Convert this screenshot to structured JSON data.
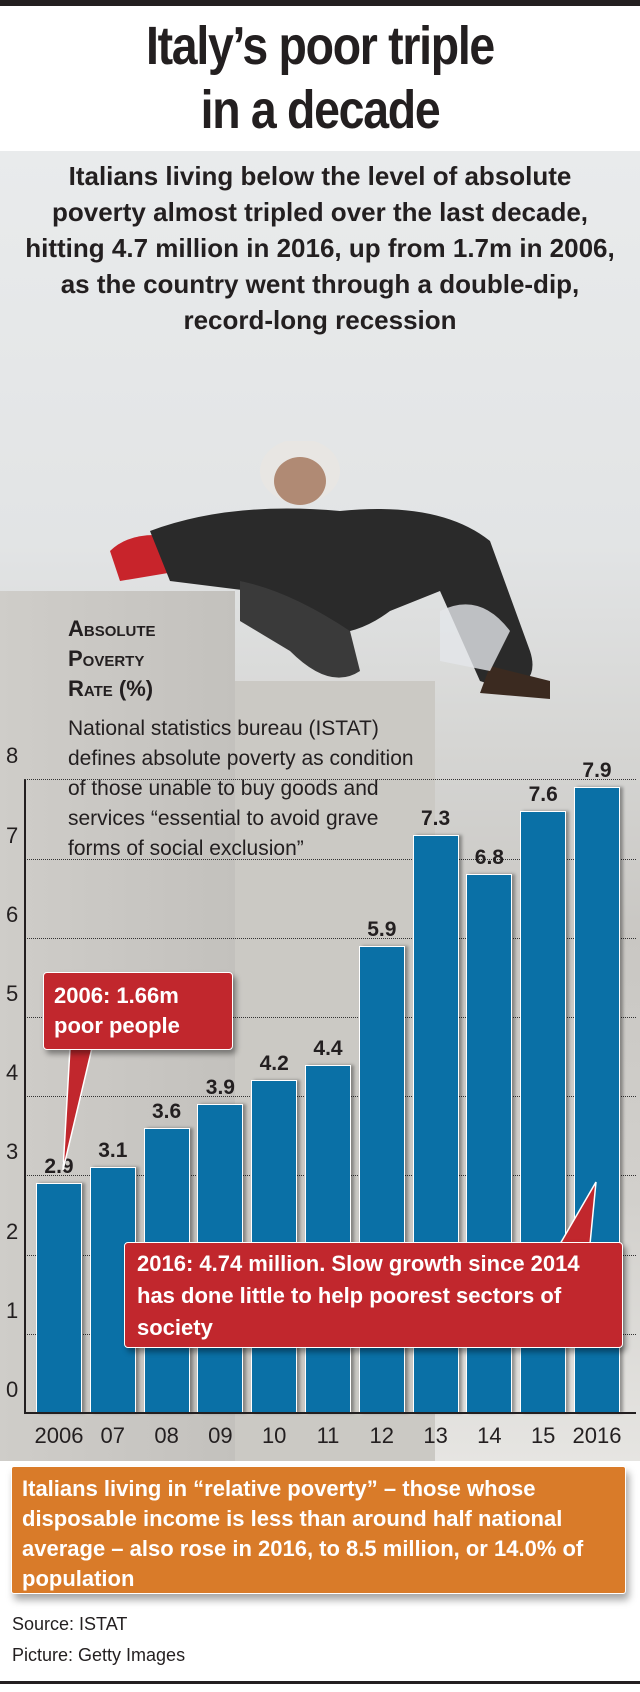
{
  "title": [
    "Italy’s poor triple",
    "in a decade"
  ],
  "subtitle": "Italians living below the level of absolute poverty almost tripled over the last decade, hitting 4.7 million in 2016, up from 1.7m in 2006, as the country went through a double-dip, record-long recession",
  "chart_label": [
    "Absolute",
    "Poverty",
    "Rate (%)"
  ],
  "description": "National statistics bureau (ISTAT) defines absolute poverty as condition of those unable to buy goods and services “essential to avoid grave forms of social exclusion”",
  "callout_2006": [
    "2006: 1.66m",
    "poor people"
  ],
  "callout_2016": "2016: 4.74 million. Slow growth since 2014 has done little to help poorest sectors of society",
  "note": "Italians living in “relative poverty” – those whose disposable income is less than around half national average – also rose in 2016, to 8.5 million, or 14.0% of population",
  "source": "Source: ISTAT",
  "picture_credit": "Picture: Getty Images",
  "colors": {
    "bar": "#0a70a6",
    "callout": "#c1272d",
    "note": "#d97b29"
  },
  "chart_data": {
    "type": "bar",
    "title": "Absolute poverty rate (%)",
    "categories": [
      "2006",
      "07",
      "08",
      "09",
      "10",
      "11",
      "12",
      "13",
      "14",
      "15",
      "2016"
    ],
    "values": [
      2.9,
      3.1,
      3.6,
      3.9,
      4.2,
      4.4,
      5.9,
      7.3,
      6.8,
      7.6,
      7.9
    ],
    "value_labels": [
      "2.9",
      "3.1",
      "3.6",
      "3.9",
      "4.2",
      "4.4",
      "5.9",
      "7.3",
      "6.8",
      "7.6",
      "7.9"
    ],
    "yticks": [
      "0",
      "1",
      "2",
      "3",
      "4",
      "5",
      "6",
      "7",
      "8"
    ],
    "ylim": [
      0,
      8
    ],
    "grid": true,
    "xlabel": "",
    "ylabel": "%"
  }
}
